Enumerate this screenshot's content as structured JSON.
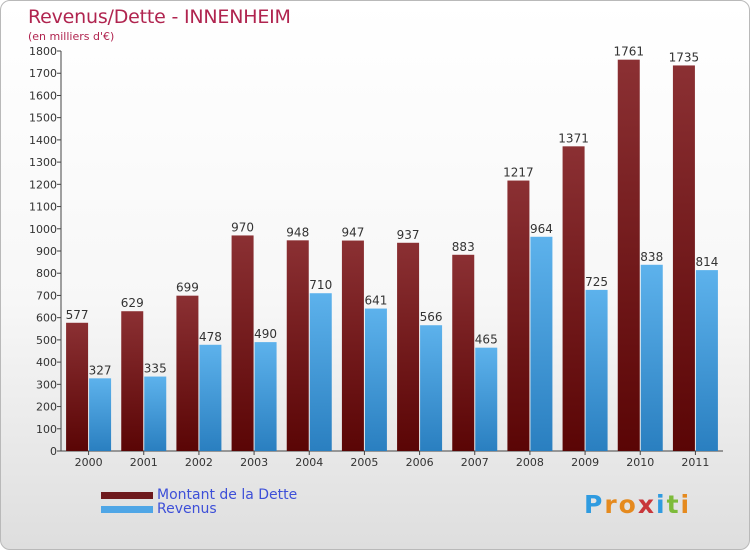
{
  "title": "Revenus/Dette - INNENHEIM",
  "subtitle": "(en milliers d'€)",
  "legend": [
    {
      "label": "Montant de la Dette",
      "color": "#6e1a1d"
    },
    {
      "label": "Revenus",
      "color": "#4fa6e6"
    }
  ],
  "logo": {
    "letters": [
      "P",
      "r",
      "o",
      "x",
      "i",
      "t",
      "i"
    ],
    "colors": [
      "#2f9be0",
      "#e58a1e",
      "#e58a1e",
      "#c8363a",
      "#2f9be0",
      "#7dbb3a",
      "#e58a1e"
    ]
  },
  "chart_data": {
    "type": "bar",
    "categories": [
      "2000",
      "2001",
      "2002",
      "2003",
      "2004",
      "2005",
      "2006",
      "2007",
      "2008",
      "2009",
      "2010",
      "2011"
    ],
    "series": [
      {
        "name": "Montant de la Dette",
        "values": [
          577,
          629,
          699,
          970,
          948,
          947,
          937,
          883,
          1217,
          1371,
          1761,
          1735
        ]
      },
      {
        "name": "Revenus",
        "values": [
          327,
          335,
          478,
          490,
          710,
          641,
          566,
          465,
          964,
          725,
          838,
          814
        ]
      }
    ],
    "ylim": [
      0,
      1800
    ],
    "yticks": [
      0,
      100,
      200,
      300,
      400,
      500,
      600,
      700,
      800,
      900,
      1000,
      1100,
      1200,
      1300,
      1400,
      1500,
      1600,
      1700,
      1800
    ],
    "grid": false,
    "legend_position": "bottom-left"
  }
}
